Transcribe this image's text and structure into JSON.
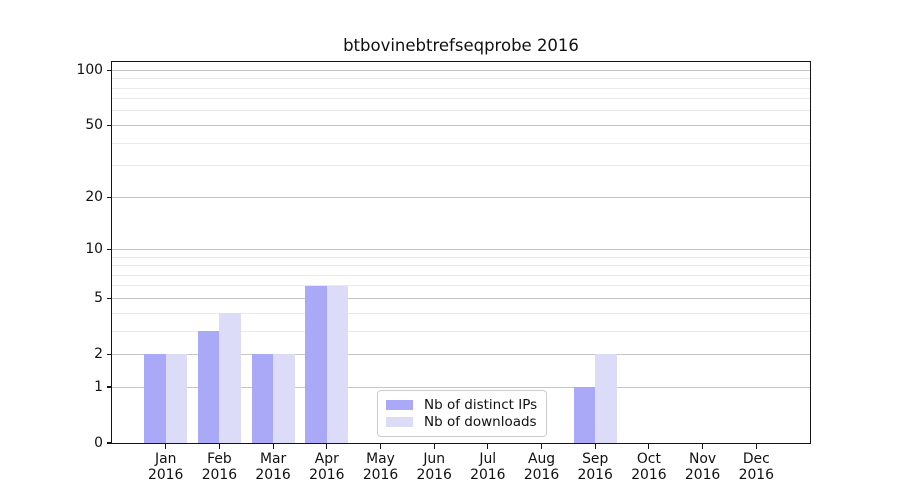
{
  "chart_data": {
    "type": "bar",
    "title": "btbovinebtrefseqprobe 2016",
    "categories": [
      "Jan",
      "Feb",
      "Mar",
      "Apr",
      "May",
      "Jun",
      "Jul",
      "Aug",
      "Sep",
      "Oct",
      "Nov",
      "Dec"
    ],
    "x_tick_second_line": "2016",
    "series": [
      {
        "name": "Nb of distinct IPs",
        "color": "#a9a9f7",
        "values": [
          2,
          3,
          2,
          6,
          0,
          0,
          0,
          0,
          1,
          0,
          0,
          0
        ]
      },
      {
        "name": "Nb of downloads",
        "color": "#dcdcf9",
        "values": [
          2,
          4,
          2,
          6,
          0,
          0,
          0,
          0,
          2,
          0,
          0,
          0
        ]
      }
    ],
    "y_axis": {
      "scale": "log10(1+value)",
      "tick_labels": [
        0,
        1,
        2,
        5,
        10,
        20,
        50,
        100
      ],
      "minor_gridlines": [
        3,
        4,
        6,
        7,
        8,
        9,
        30,
        40,
        60,
        70,
        80,
        90
      ],
      "top_value": 112
    },
    "legend": {
      "position": "lower-center",
      "entries": [
        {
          "label": "Nb of distinct IPs",
          "color": "#a9a9f7"
        },
        {
          "label": "Nb of downloads",
          "color": "#dcdcf9"
        }
      ]
    },
    "grid": {
      "major_color": "#c6c6c6",
      "minor_color": "#eaeaea"
    },
    "axis_color": "#151515"
  }
}
